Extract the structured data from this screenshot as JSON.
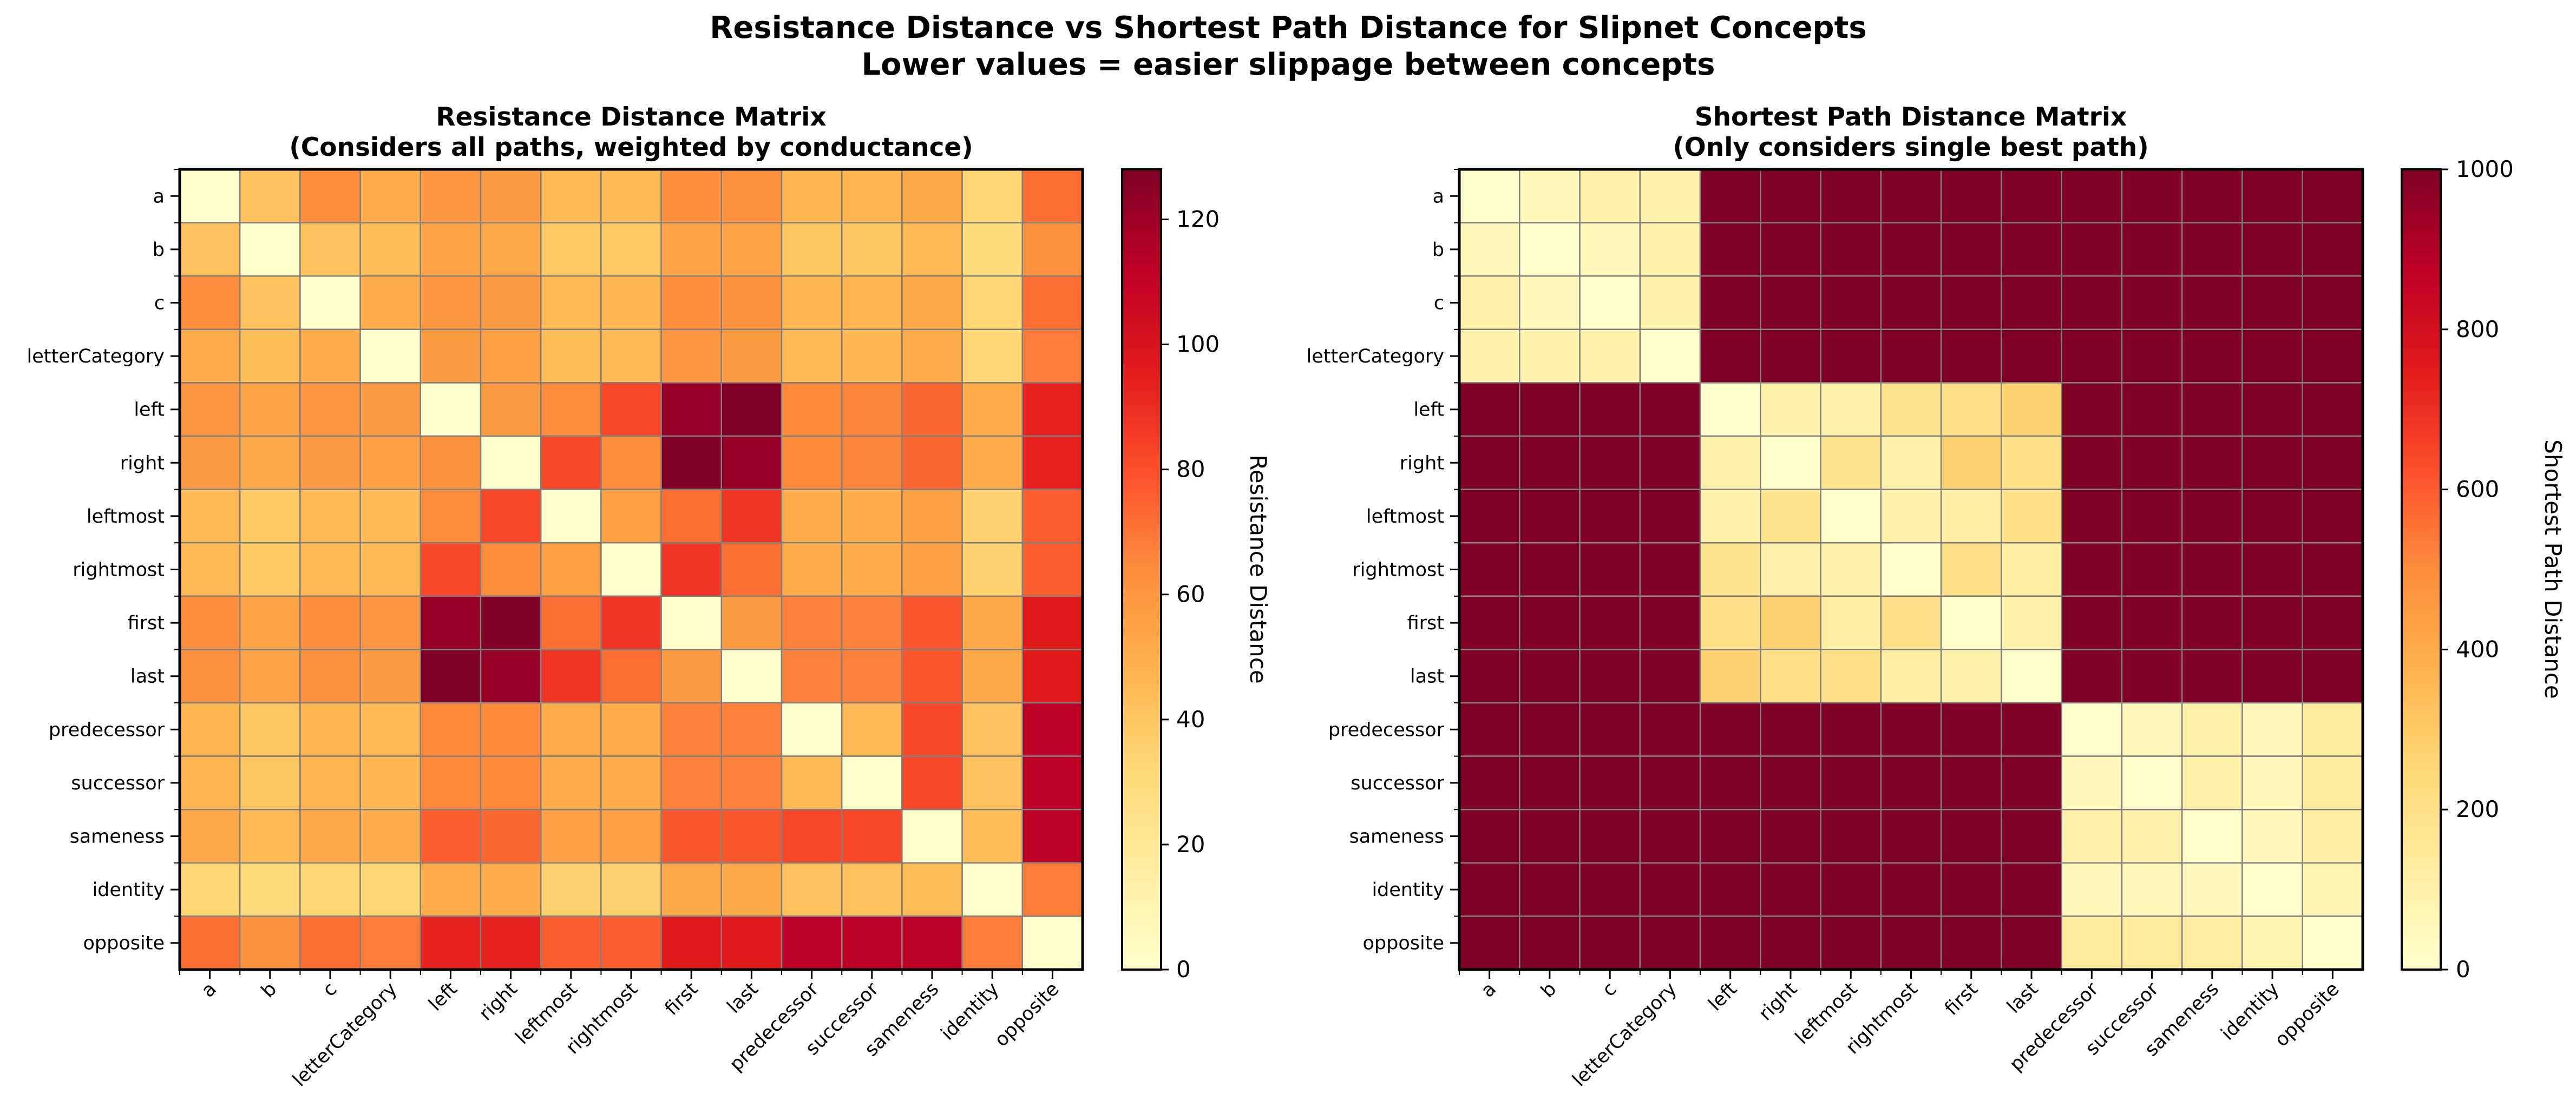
{
  "figure": {
    "suptitle_line1": "Resistance Distance vs Shortest Path Distance for Slipnet Concepts",
    "suptitle_line2": "Lower values = easier slippage between concepts"
  },
  "chart_data": [
    {
      "type": "heatmap",
      "title_line1": "Resistance Distance Matrix",
      "title_line2": "(Considers all paths, weighted by conductance)",
      "colormap": "YlOrRd",
      "colorbar_label": "Resistance Distance",
      "colorbar_ticks": [
        0,
        20,
        40,
        60,
        80,
        100,
        120
      ],
      "vmin": 0,
      "vmax": 128,
      "grid": true,
      "grid_color": "#808080",
      "xlabels": [
        "a",
        "b",
        "c",
        "letterCategory",
        "left",
        "right",
        "leftmost",
        "rightmost",
        "first",
        "last",
        "predecessor",
        "successor",
        "sameness",
        "identity",
        "opposite"
      ],
      "ylabels": [
        "a",
        "b",
        "c",
        "letterCategory",
        "left",
        "right",
        "leftmost",
        "rightmost",
        "first",
        "last",
        "predecessor",
        "successor",
        "sameness",
        "identity",
        "opposite"
      ],
      "values": [
        [
          0,
          42,
          64,
          50,
          60,
          58,
          45,
          45,
          63,
          62,
          46,
          47,
          52,
          33,
          72
        ],
        [
          42,
          0,
          42,
          44,
          54,
          52,
          38,
          38,
          54,
          54,
          40,
          40,
          45,
          30,
          62
        ],
        [
          64,
          42,
          0,
          50,
          60,
          58,
          45,
          46,
          63,
          62,
          46,
          47,
          52,
          33,
          72
        ],
        [
          50,
          44,
          50,
          0,
          58,
          56,
          44,
          45,
          60,
          58,
          45,
          46,
          50,
          33,
          68
        ],
        [
          60,
          54,
          60,
          58,
          0,
          58,
          64,
          82,
          122,
          128,
          65,
          66,
          74,
          50,
          94
        ],
        [
          58,
          52,
          58,
          56,
          62,
          0,
          82,
          64,
          128,
          122,
          65,
          66,
          74,
          50,
          94
        ],
        [
          45,
          38,
          45,
          45,
          64,
          82,
          0,
          56,
          72,
          88,
          50,
          50,
          56,
          35,
          76
        ],
        [
          45,
          38,
          45,
          45,
          82,
          64,
          56,
          0,
          88,
          72,
          50,
          50,
          56,
          35,
          76
        ],
        [
          63,
          54,
          63,
          60,
          122,
          128,
          72,
          88,
          0,
          58,
          67,
          67,
          78,
          52,
          96
        ],
        [
          62,
          54,
          62,
          58,
          128,
          122,
          88,
          72,
          58,
          0,
          67,
          67,
          78,
          52,
          96
        ],
        [
          46,
          40,
          46,
          45,
          65,
          65,
          50,
          50,
          67,
          67,
          0,
          45,
          82,
          42,
          112
        ],
        [
          47,
          40,
          47,
          46,
          65,
          65,
          50,
          50,
          67,
          67,
          45,
          0,
          82,
          42,
          112
        ],
        [
          52,
          45,
          52,
          50,
          76,
          74,
          56,
          56,
          78,
          78,
          82,
          82,
          0,
          44,
          112
        ],
        [
          33,
          30,
          33,
          33,
          50,
          50,
          35,
          35,
          52,
          52,
          42,
          42,
          44,
          0,
          68
        ],
        [
          72,
          62,
          72,
          68,
          94,
          94,
          76,
          76,
          96,
          96,
          112,
          112,
          112,
          68,
          0
        ]
      ]
    },
    {
      "type": "heatmap",
      "title_line1": "Shortest Path Distance Matrix",
      "title_line2": "(Only considers single best path)",
      "colormap": "YlOrRd",
      "colorbar_label": "Shortest Path Distance",
      "colorbar_ticks": [
        0,
        200,
        400,
        600,
        800,
        1000
      ],
      "vmin": 0,
      "vmax": 1000,
      "grid": true,
      "grid_color": "#808080",
      "xlabels": [
        "a",
        "b",
        "c",
        "letterCategory",
        "left",
        "right",
        "leftmost",
        "rightmost",
        "first",
        "last",
        "predecessor",
        "successor",
        "sameness",
        "identity",
        "opposite"
      ],
      "ylabels": [
        "a",
        "b",
        "c",
        "letterCategory",
        "left",
        "right",
        "leftmost",
        "rightmost",
        "first",
        "last",
        "predecessor",
        "successor",
        "sameness",
        "identity",
        "opposite"
      ],
      "values": [
        [
          0,
          50,
          100,
          90,
          1000,
          1000,
          1000,
          1000,
          1000,
          1000,
          1000,
          1000,
          1000,
          1000,
          1000
        ],
        [
          50,
          0,
          50,
          90,
          1000,
          1000,
          1000,
          1000,
          1000,
          1000,
          1000,
          1000,
          1000,
          1000,
          1000
        ],
        [
          100,
          50,
          0,
          90,
          1000,
          1000,
          1000,
          1000,
          1000,
          1000,
          1000,
          1000,
          1000,
          1000,
          1000
        ],
        [
          90,
          90,
          90,
          0,
          1000,
          1000,
          1000,
          1000,
          1000,
          1000,
          1000,
          1000,
          1000,
          1000,
          1000
        ],
        [
          1000,
          1000,
          1000,
          1000,
          0,
          100,
          100,
          180,
          200,
          270,
          1000,
          1000,
          1000,
          1000,
          1000
        ],
        [
          1000,
          1000,
          1000,
          1000,
          100,
          0,
          180,
          100,
          270,
          200,
          1000,
          1000,
          1000,
          1000,
          1000
        ],
        [
          1000,
          1000,
          1000,
          1000,
          100,
          180,
          0,
          100,
          120,
          200,
          1000,
          1000,
          1000,
          1000,
          1000
        ],
        [
          1000,
          1000,
          1000,
          1000,
          180,
          100,
          100,
          0,
          200,
          120,
          1000,
          1000,
          1000,
          1000,
          1000
        ],
        [
          1000,
          1000,
          1000,
          1000,
          200,
          270,
          120,
          200,
          0,
          100,
          1000,
          1000,
          1000,
          1000,
          1000
        ],
        [
          1000,
          1000,
          1000,
          1000,
          270,
          200,
          200,
          120,
          100,
          0,
          1000,
          1000,
          1000,
          1000,
          1000
        ],
        [
          1000,
          1000,
          1000,
          1000,
          1000,
          1000,
          1000,
          1000,
          1000,
          1000,
          0,
          50,
          100,
          50,
          140
        ],
        [
          1000,
          1000,
          1000,
          1000,
          1000,
          1000,
          1000,
          1000,
          1000,
          1000,
          50,
          0,
          100,
          50,
          140
        ],
        [
          1000,
          1000,
          1000,
          1000,
          1000,
          1000,
          1000,
          1000,
          1000,
          1000,
          100,
          100,
          0,
          50,
          120
        ],
        [
          1000,
          1000,
          1000,
          1000,
          1000,
          1000,
          1000,
          1000,
          1000,
          1000,
          50,
          50,
          50,
          0,
          80
        ],
        [
          1000,
          1000,
          1000,
          1000,
          1000,
          1000,
          1000,
          1000,
          1000,
          1000,
          140,
          140,
          120,
          80,
          0
        ]
      ]
    }
  ]
}
